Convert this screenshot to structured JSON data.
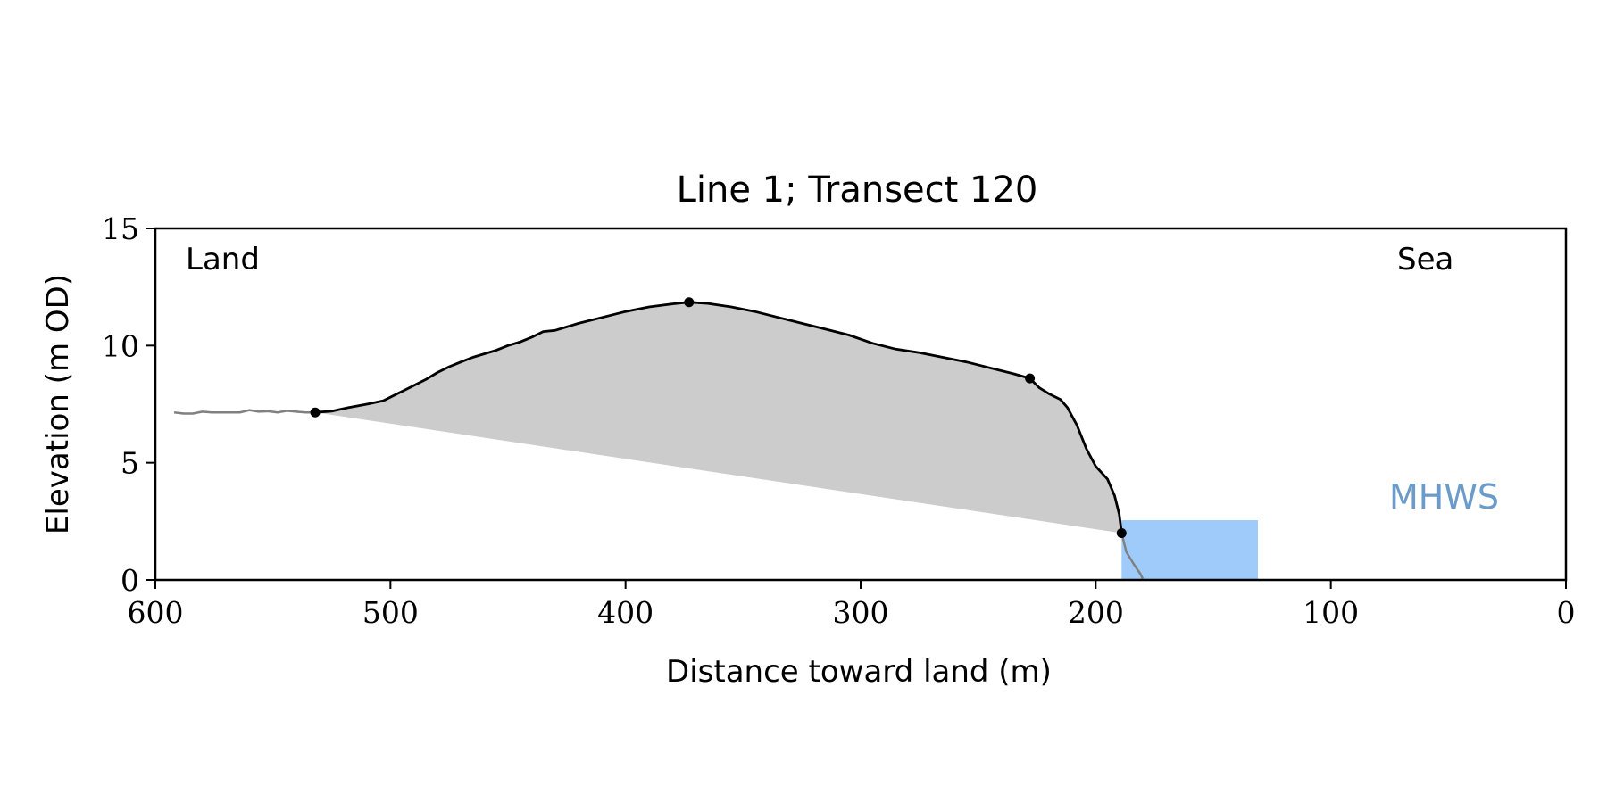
{
  "chart_data": {
    "type": "area",
    "title": "Line 1; Transect 120",
    "xlabel": "Distance toward land (m)",
    "ylabel": "Elevation (m OD)",
    "xlim": [
      600,
      0
    ],
    "ylim": [
      0,
      15
    ],
    "x_ticks": [
      600,
      500,
      400,
      300,
      200,
      100,
      0
    ],
    "y_ticks": [
      0,
      5,
      10,
      15
    ],
    "grid": false,
    "annotations": {
      "land": "Land",
      "sea": "Sea",
      "mhws": "MHWS"
    },
    "colors": {
      "profile": "#000000",
      "profile_outside": "#808080",
      "fill": "#cccccc",
      "water": "#9ecbfa",
      "mhws_text": "#6a9bc9"
    },
    "water_box": {
      "x": [
        131,
        189
      ],
      "y": [
        0,
        2.55
      ]
    },
    "profile_outside_land": {
      "x": [
        592,
        588,
        584,
        580,
        576,
        570,
        564,
        560,
        556,
        552,
        548,
        544,
        540,
        536,
        532
      ],
      "y": [
        7.15,
        7.1,
        7.1,
        7.18,
        7.15,
        7.15,
        7.15,
        7.25,
        7.18,
        7.2,
        7.15,
        7.22,
        7.18,
        7.15,
        7.15
      ]
    },
    "profile": {
      "x": [
        532,
        525,
        518,
        510,
        503,
        498,
        495,
        490,
        485,
        480,
        475,
        470,
        465,
        460,
        455,
        450,
        445,
        440,
        435,
        430,
        420,
        410,
        400,
        390,
        380,
        373,
        365,
        355,
        345,
        335,
        325,
        315,
        305,
        295,
        285,
        275,
        265,
        255,
        245,
        235,
        228,
        224,
        220,
        215,
        212,
        208,
        204,
        200,
        195,
        192,
        190,
        189
      ],
      "y": [
        7.15,
        7.2,
        7.35,
        7.5,
        7.65,
        7.9,
        8.05,
        8.3,
        8.55,
        8.85,
        9.1,
        9.3,
        9.5,
        9.65,
        9.8,
        10.0,
        10.15,
        10.35,
        10.6,
        10.65,
        10.95,
        11.2,
        11.45,
        11.65,
        11.78,
        11.85,
        11.8,
        11.65,
        11.45,
        11.2,
        10.95,
        10.7,
        10.45,
        10.1,
        9.85,
        9.7,
        9.5,
        9.3,
        9.05,
        8.8,
        8.6,
        8.2,
        7.95,
        7.7,
        7.35,
        6.6,
        5.6,
        4.85,
        4.3,
        3.6,
        2.8,
        2.0
      ]
    },
    "profile_outside_sea": {
      "x": [
        189,
        187,
        184,
        181,
        180
      ],
      "y": [
        2.0,
        1.2,
        0.7,
        0.25,
        0.05
      ]
    },
    "marker_points": {
      "x": [
        532,
        373,
        228,
        189
      ],
      "y": [
        7.15,
        11.85,
        8.6,
        2.0
      ]
    },
    "baseline": {
      "x": [
        532,
        189
      ],
      "y": [
        7.15,
        2.0
      ]
    }
  }
}
